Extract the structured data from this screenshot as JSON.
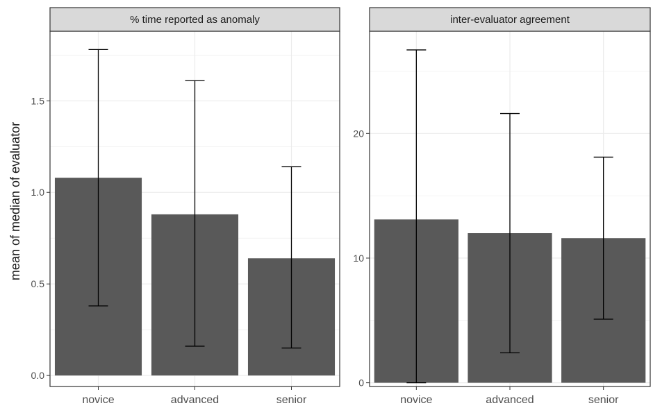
{
  "chart_data": {
    "type": "bar",
    "ylabel": "mean of median of evaluator",
    "categories": [
      "novice",
      "advanced",
      "senior"
    ],
    "colors": {
      "bar": "#595959",
      "strip": "#d9d9d9",
      "grid": "#ebebeb",
      "border": "#333333"
    },
    "panels": [
      {
        "title": "% time reported as anomaly",
        "values": [
          1.08,
          0.88,
          0.64
        ],
        "error_low": [
          0.38,
          0.16,
          0.15
        ],
        "error_high": [
          1.78,
          1.61,
          1.14
        ],
        "ylim": [
          -0.06,
          1.88
        ],
        "yticks": [
          0.0,
          0.5,
          1.0,
          1.5
        ],
        "ytick_labels": [
          "0.0",
          "0.5",
          "1.0",
          "1.5"
        ]
      },
      {
        "title": "inter-evaluator agreement",
        "values": [
          13.1,
          12.0,
          11.6
        ],
        "error_low": [
          0.0,
          2.4,
          5.1
        ],
        "error_high": [
          26.7,
          21.6,
          18.1
        ],
        "ylim": [
          -0.3,
          28.2
        ],
        "yticks": [
          0,
          10,
          20
        ],
        "ytick_labels": [
          "0",
          "10",
          "20"
        ]
      }
    ],
    "grid": true,
    "legend": "none"
  }
}
